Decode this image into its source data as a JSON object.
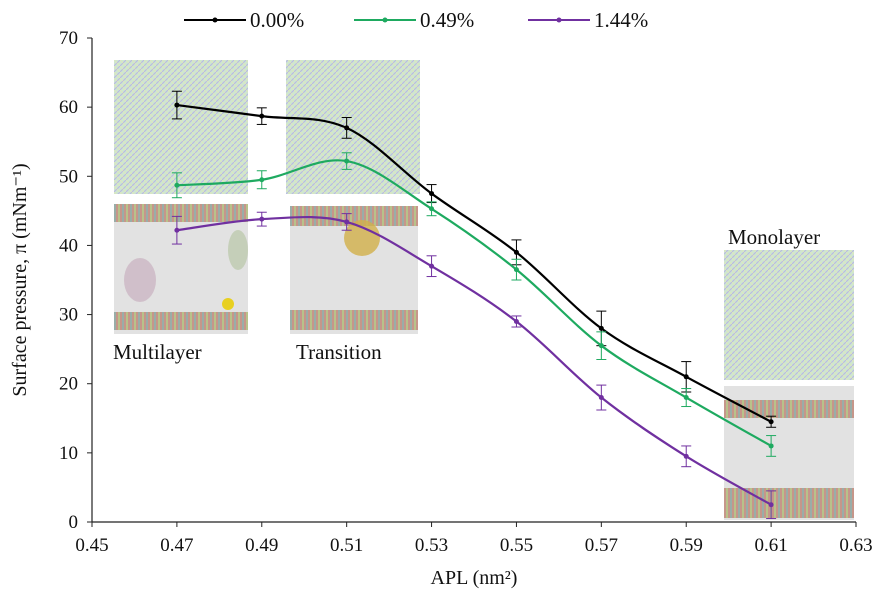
{
  "chart_data": {
    "type": "line",
    "xlabel": "APL (nm²)",
    "ylabel": "Surface pressure, π (mNm⁻¹)",
    "xlim": [
      0.45,
      0.63
    ],
    "ylim": [
      0,
      70
    ],
    "x_ticks": [
      0.45,
      0.47,
      0.49,
      0.51,
      0.53,
      0.55,
      0.57,
      0.59,
      0.61,
      0.63
    ],
    "y_ticks": [
      0,
      10,
      20,
      30,
      40,
      50,
      60,
      70
    ],
    "x_tick_labels": [
      "0.45",
      "0.47",
      "0.49",
      "0.51",
      "0.53",
      "0.55",
      "0.57",
      "0.59",
      "0.61",
      "0.63"
    ],
    "y_tick_labels": [
      "0",
      "10",
      "20",
      "30",
      "40",
      "50",
      "60",
      "70"
    ],
    "grid": false,
    "legend_position": "top",
    "series": [
      {
        "name": "0.00%",
        "color": "#000000",
        "x": [
          0.47,
          0.49,
          0.51,
          0.53,
          0.55,
          0.57,
          0.59,
          0.61
        ],
        "y": [
          60.3,
          58.7,
          57.0,
          47.5,
          39.0,
          28.0,
          21.0,
          14.5
        ],
        "err": [
          2.0,
          1.2,
          1.5,
          1.3,
          1.8,
          2.5,
          2.2,
          0.8
        ]
      },
      {
        "name": "0.49%",
        "color": "#1eaa60",
        "x": [
          0.47,
          0.49,
          0.51,
          0.53,
          0.55,
          0.57,
          0.59,
          0.61
        ],
        "y": [
          48.7,
          49.5,
          52.2,
          45.3,
          36.5,
          25.5,
          18.0,
          11.0
        ],
        "err": [
          1.8,
          1.3,
          1.2,
          1.0,
          1.5,
          2.0,
          1.3,
          1.5
        ]
      },
      {
        "name": "1.44%",
        "color": "#7030a0",
        "x": [
          0.47,
          0.49,
          0.51,
          0.53,
          0.55,
          0.57,
          0.59,
          0.61
        ],
        "y": [
          42.2,
          43.8,
          43.4,
          37.0,
          29.0,
          18.0,
          9.5,
          2.5
        ],
        "err": [
          2.0,
          1.0,
          1.2,
          1.5,
          0.8,
          1.8,
          1.5,
          2.0
        ]
      }
    ],
    "annotations": [
      "Multilayer",
      "Transition",
      "Monolayer"
    ]
  }
}
